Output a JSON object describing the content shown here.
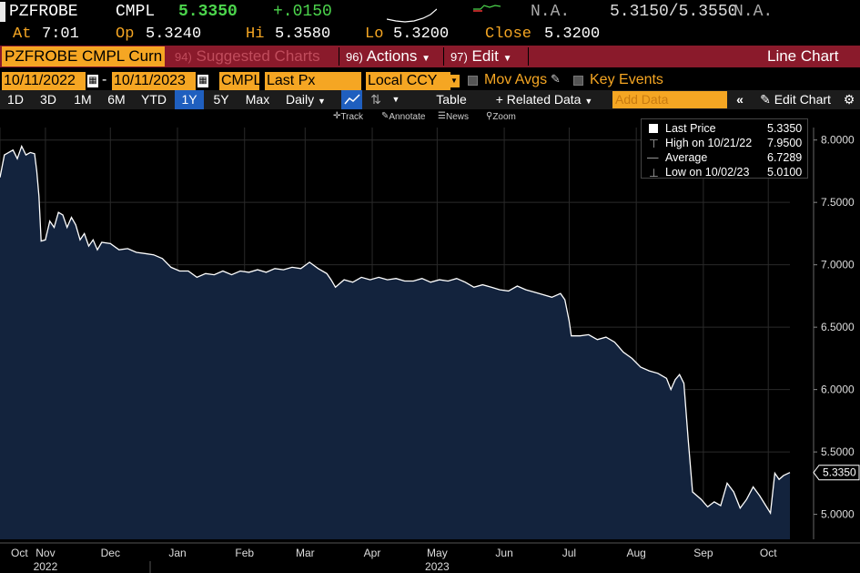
{
  "quote": {
    "ticker": "PZFROBE",
    "source": "CMPL",
    "last": "5.3350",
    "change": "+.0150",
    "na1": "N.A.",
    "bid_ask": "5.3150/5.3550",
    "na2": "N.A."
  },
  "ohlc": {
    "at_label": "At",
    "at_value": "7:01",
    "op_label": "Op",
    "op_value": "5.3240",
    "hi_label": "Hi",
    "hi_value": "5.3580",
    "lo_label": "Lo",
    "lo_value": "5.3200",
    "close_label": "Close",
    "close_value": "5.3200"
  },
  "toolbar": {
    "security": "PZFROBE CMPL Curn",
    "suggested_num": "94)",
    "suggested": "Suggested Charts",
    "actions_num": "96)",
    "actions": "Actions",
    "edit_num": "97)",
    "edit": "Edit",
    "chart_type": "Line Chart"
  },
  "params": {
    "start_date": "10/11/2022",
    "dash": "-",
    "end_date": "10/11/2023",
    "source": "CMPL",
    "field": "Last Px",
    "currency": "Local CCY",
    "mov_avgs": "Mov Avgs",
    "key_events": "Key Events"
  },
  "ranges": {
    "items": [
      "1D",
      "3D",
      "1M",
      "6M",
      "YTD",
      "1Y",
      "5Y",
      "Max"
    ],
    "active": "1Y",
    "frequency": "Daily",
    "table": "Table",
    "related": "+ Related Data",
    "add_data_placeholder": "Add Data",
    "edit_chart": "Edit Chart"
  },
  "tools": {
    "track": "Track",
    "annotate": "Annotate",
    "news": "News",
    "zoom": "Zoom"
  },
  "legend": {
    "last_label": "Last Price",
    "last_value": "5.3350",
    "high_label": "High on 10/21/22",
    "high_value": "7.9500",
    "avg_label": "Average",
    "avg_value": "6.7289",
    "low_label": "Low on 10/02/23",
    "low_value": "5.0100"
  },
  "chart_data": {
    "type": "area",
    "x_start": "10/11/2022",
    "x_end": "10/11/2023",
    "ylim": [
      4.8,
      8.1
    ],
    "yticks": [
      "8.0000",
      "7.5000",
      "7.0000",
      "6.5000",
      "6.0000",
      "5.5000",
      "5.0000"
    ],
    "ytick_values": [
      8.0,
      7.5,
      7.0,
      6.5,
      6.0,
      5.5,
      5.0
    ],
    "xticks": [
      "Oct",
      "Nov",
      "Dec",
      "Jan",
      "Feb",
      "Mar",
      "Apr",
      "May",
      "Jun",
      "Jul",
      "Aug",
      "Sep",
      "Oct"
    ],
    "xtick_dates": [
      "2022-10-11",
      "2022-11-01",
      "2022-12-01",
      "2023-01-01",
      "2023-02-01",
      "2023-03-01",
      "2023-04-01",
      "2023-05-01",
      "2023-06-01",
      "2023-07-01",
      "2023-08-01",
      "2023-09-01",
      "2023-10-01"
    ],
    "years": [
      "2022",
      "2023"
    ],
    "year_dates": [
      "2022-11-01",
      "2023-05-01"
    ],
    "last_value_label": "5.3350",
    "series": [
      {
        "values": [
          [
            "2022-10-11",
            7.7
          ],
          [
            "2022-10-13",
            7.88
          ],
          [
            "2022-10-15",
            7.9
          ],
          [
            "2022-10-17",
            7.92
          ],
          [
            "2022-10-19",
            7.85
          ],
          [
            "2022-10-21",
            7.95
          ],
          [
            "2022-10-23",
            7.88
          ],
          [
            "2022-10-25",
            7.9
          ],
          [
            "2022-10-27",
            7.89
          ],
          [
            "2022-10-28",
            7.75
          ],
          [
            "2022-10-29",
            7.55
          ],
          [
            "2022-10-30",
            7.19
          ],
          [
            "2022-11-01",
            7.2
          ],
          [
            "2022-11-03",
            7.35
          ],
          [
            "2022-11-05",
            7.3
          ],
          [
            "2022-11-07",
            7.42
          ],
          [
            "2022-11-09",
            7.4
          ],
          [
            "2022-11-11",
            7.3
          ],
          [
            "2022-11-13",
            7.38
          ],
          [
            "2022-11-15",
            7.32
          ],
          [
            "2022-11-17",
            7.2
          ],
          [
            "2022-11-19",
            7.25
          ],
          [
            "2022-11-21",
            7.15
          ],
          [
            "2022-11-23",
            7.2
          ],
          [
            "2022-11-25",
            7.12
          ],
          [
            "2022-11-27",
            7.18
          ],
          [
            "2022-12-01",
            7.17
          ],
          [
            "2022-12-05",
            7.12
          ],
          [
            "2022-12-09",
            7.13
          ],
          [
            "2022-12-13",
            7.1
          ],
          [
            "2022-12-17",
            7.09
          ],
          [
            "2022-12-21",
            7.08
          ],
          [
            "2022-12-25",
            7.05
          ],
          [
            "2022-12-29",
            6.98
          ],
          [
            "2023-01-02",
            6.95
          ],
          [
            "2023-01-06",
            6.95
          ],
          [
            "2023-01-10",
            6.9
          ],
          [
            "2023-01-14",
            6.93
          ],
          [
            "2023-01-18",
            6.92
          ],
          [
            "2023-01-22",
            6.95
          ],
          [
            "2023-01-26",
            6.92
          ],
          [
            "2023-01-30",
            6.95
          ],
          [
            "2023-02-03",
            6.94
          ],
          [
            "2023-02-07",
            6.96
          ],
          [
            "2023-02-11",
            6.94
          ],
          [
            "2023-02-15",
            6.97
          ],
          [
            "2023-02-19",
            6.96
          ],
          [
            "2023-02-23",
            6.98
          ],
          [
            "2023-02-27",
            6.97
          ],
          [
            "2023-03-03",
            7.02
          ],
          [
            "2023-03-07",
            6.97
          ],
          [
            "2023-03-11",
            6.93
          ],
          [
            "2023-03-13",
            6.88
          ],
          [
            "2023-03-15",
            6.82
          ],
          [
            "2023-03-19",
            6.88
          ],
          [
            "2023-03-23",
            6.86
          ],
          [
            "2023-03-27",
            6.9
          ],
          [
            "2023-03-31",
            6.88
          ],
          [
            "2023-04-04",
            6.9
          ],
          [
            "2023-04-08",
            6.88
          ],
          [
            "2023-04-12",
            6.89
          ],
          [
            "2023-04-16",
            6.87
          ],
          [
            "2023-04-20",
            6.87
          ],
          [
            "2023-04-24",
            6.89
          ],
          [
            "2023-04-28",
            6.86
          ],
          [
            "2023-05-02",
            6.88
          ],
          [
            "2023-05-06",
            6.87
          ],
          [
            "2023-05-10",
            6.89
          ],
          [
            "2023-05-14",
            6.86
          ],
          [
            "2023-05-18",
            6.82
          ],
          [
            "2023-05-22",
            6.84
          ],
          [
            "2023-05-26",
            6.82
          ],
          [
            "2023-05-30",
            6.8
          ],
          [
            "2023-06-03",
            6.79
          ],
          [
            "2023-06-07",
            6.83
          ],
          [
            "2023-06-11",
            6.8
          ],
          [
            "2023-06-15",
            6.78
          ],
          [
            "2023-06-19",
            6.76
          ],
          [
            "2023-06-23",
            6.74
          ],
          [
            "2023-06-27",
            6.77
          ],
          [
            "2023-06-29",
            6.72
          ],
          [
            "2023-07-01",
            6.55
          ],
          [
            "2023-07-02",
            6.43
          ],
          [
            "2023-07-06",
            6.43
          ],
          [
            "2023-07-10",
            6.44
          ],
          [
            "2023-07-14",
            6.4
          ],
          [
            "2023-07-18",
            6.42
          ],
          [
            "2023-07-22",
            6.38
          ],
          [
            "2023-07-26",
            6.3
          ],
          [
            "2023-07-30",
            6.25
          ],
          [
            "2023-08-03",
            6.18
          ],
          [
            "2023-08-07",
            6.15
          ],
          [
            "2023-08-11",
            6.13
          ],
          [
            "2023-08-15",
            6.09
          ],
          [
            "2023-08-17",
            6.0
          ],
          [
            "2023-08-19",
            6.08
          ],
          [
            "2023-08-21",
            6.12
          ],
          [
            "2023-08-23",
            6.05
          ],
          [
            "2023-08-25",
            5.6
          ],
          [
            "2023-08-27",
            5.18
          ],
          [
            "2023-08-31",
            5.12
          ],
          [
            "2023-09-03",
            5.06
          ],
          [
            "2023-09-06",
            5.1
          ],
          [
            "2023-09-09",
            5.07
          ],
          [
            "2023-09-12",
            5.25
          ],
          [
            "2023-09-15",
            5.18
          ],
          [
            "2023-09-18",
            5.05
          ],
          [
            "2023-09-21",
            5.12
          ],
          [
            "2023-09-24",
            5.22
          ],
          [
            "2023-09-27",
            5.15
          ],
          [
            "2023-10-02",
            5.01
          ],
          [
            "2023-10-04",
            5.33
          ],
          [
            "2023-10-06",
            5.28
          ],
          [
            "2023-10-08",
            5.31
          ],
          [
            "2023-10-11",
            5.335
          ]
        ]
      }
    ]
  }
}
